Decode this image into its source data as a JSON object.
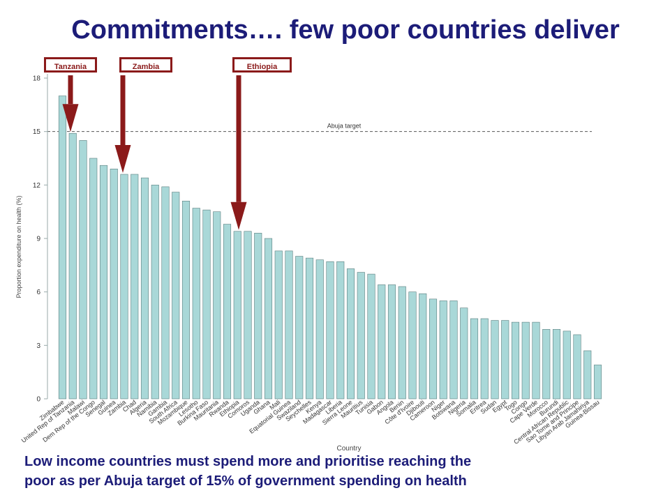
{
  "slide": {
    "title": "Commitments…. few poor countries deliver",
    "footer_line1": "Low income countries must spend more and prioritise reaching the",
    "footer_line2": "poor as per Abuja target of 15% of government spending on health"
  },
  "callouts": [
    {
      "label": "Tanzania",
      "country": "United Rep of Tanzania"
    },
    {
      "label": "Zambia",
      "country": "Zambia"
    },
    {
      "label": "Ethiopia",
      "country": "Ethiopia"
    }
  ],
  "colors": {
    "bar": "#a9d8d8",
    "bar_stroke": "#5a7d7d",
    "callout": "#8b1a1a",
    "title": "#1c1c78"
  },
  "chart_data": {
    "type": "bar",
    "xlabel": "Country",
    "ylabel": "Proportion expenditure on health (%)",
    "ylim": [
      0,
      18
    ],
    "yticks": [
      0,
      3,
      6,
      9,
      12,
      15,
      18
    ],
    "reference_line": {
      "value": 15,
      "label": "Abuja target"
    },
    "categories": [
      "Zimbabwe",
      "United Rep of Tanzania",
      "Malawi",
      "Dem Rep of the Congo",
      "Senegal",
      "Guinea",
      "Zambia",
      "Chad",
      "Algeria",
      "Namibia",
      "Gambia",
      "South Africa",
      "Mozambique",
      "Lesotho",
      "Burkina Faso",
      "Mauritania",
      "Rwanda",
      "Ethiopia",
      "Comoros",
      "Uganda",
      "Ghana",
      "Mali",
      "Equatorial Guinea",
      "Swaziland",
      "Seychelles",
      "Kenya",
      "Madagascar",
      "Liberia",
      "Sierra Leone",
      "Mauritius",
      "Tunisia",
      "Gabon",
      "Angola",
      "Benin",
      "Côte d'Ivoire",
      "Djibouti",
      "Cameroon",
      "Niger",
      "Botswana",
      "Nigeria",
      "Somalia",
      "Eritrea",
      "Sudan",
      "Egypt",
      "Togo",
      "Congo",
      "Cape Verde",
      "Morocco",
      "Burundi",
      "Central African Republic",
      "Sao Tome and Principe",
      "Libyan Arab Jamahiriya",
      "Guinea-Bissau"
    ],
    "values": [
      17.0,
      14.9,
      14.5,
      13.5,
      13.1,
      12.9,
      12.6,
      12.6,
      12.4,
      12.0,
      11.9,
      11.6,
      11.1,
      10.7,
      10.6,
      10.5,
      9.8,
      9.4,
      9.4,
      9.3,
      9.0,
      8.3,
      8.3,
      8.0,
      7.9,
      7.8,
      7.7,
      7.7,
      7.3,
      7.1,
      7.0,
      6.4,
      6.4,
      6.3,
      6.0,
      5.9,
      5.6,
      5.5,
      5.5,
      5.1,
      4.5,
      4.5,
      4.4,
      4.4,
      4.3,
      4.3,
      4.3,
      3.9,
      3.9,
      3.8,
      3.6,
      2.7,
      1.9
    ]
  }
}
